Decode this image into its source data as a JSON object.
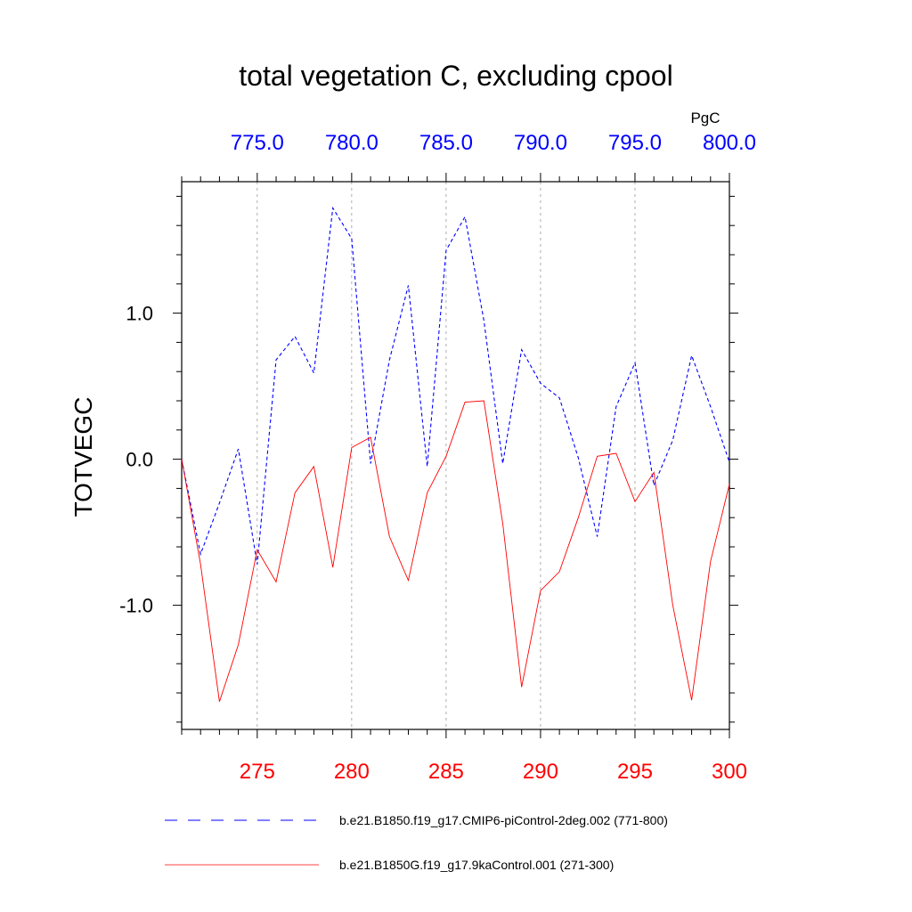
{
  "chart_data": {
    "type": "line",
    "title": "total vegetation C, excluding cpool",
    "ylabel": "TOTVEGC",
    "units": "PgC",
    "ylim": [
      -1.85,
      1.9
    ],
    "yticks": [
      {
        "value": -1.0,
        "label": "-1.0"
      },
      {
        "value": 0.0,
        "label": "0.0"
      },
      {
        "value": 1.0,
        "label": "1.0"
      }
    ],
    "y_minor_step": 0.2,
    "x_bottom": {
      "range": [
        271,
        300
      ],
      "ticks": [
        {
          "value": 275,
          "label": "275"
        },
        {
          "value": 280,
          "label": "280"
        },
        {
          "value": 285,
          "label": "285"
        },
        {
          "value": 290,
          "label": "290"
        },
        {
          "value": 295,
          "label": "295"
        },
        {
          "value": 300,
          "label": "300"
        }
      ],
      "color": "#ff0000"
    },
    "x_top": {
      "range": [
        771,
        800
      ],
      "ticks": [
        {
          "value": 775,
          "label": "775.0"
        },
        {
          "value": 780,
          "label": "780.0"
        },
        {
          "value": 785,
          "label": "785.0"
        },
        {
          "value": 790,
          "label": "790.0"
        },
        {
          "value": 795,
          "label": "795.0"
        },
        {
          "value": 800,
          "label": "800.0"
        }
      ],
      "color": "#0000ff"
    },
    "grid": "vertical dashed at major ticks",
    "series": [
      {
        "name": "b.e21.B1850.f19_g17.CMIP6-piControl-2deg.002 (771-800)",
        "axis": "top",
        "color": "#0000ff",
        "dash": true,
        "x": [
          771,
          772,
          773,
          774,
          775,
          776,
          777,
          778,
          779,
          780,
          781,
          782,
          783,
          784,
          785,
          786,
          787,
          788,
          789,
          790,
          791,
          792,
          793,
          794,
          795,
          796,
          797,
          798,
          799,
          800
        ],
        "values": [
          0.0,
          -0.65,
          -0.3,
          0.07,
          -0.72,
          0.68,
          0.84,
          0.59,
          1.72,
          1.51,
          -0.03,
          0.68,
          1.19,
          -0.05,
          1.43,
          1.66,
          0.95,
          -0.03,
          0.75,
          0.52,
          0.42,
          0.01,
          -0.53,
          0.36,
          0.66,
          -0.18,
          0.13,
          0.71,
          0.36,
          -0.02
        ]
      },
      {
        "name": "b.e21.B1850G.f19_g17.9kaControl.001 (271-300)",
        "axis": "bottom",
        "color": "#ff0000",
        "dash": false,
        "x": [
          271,
          272,
          273,
          274,
          275,
          276,
          277,
          278,
          279,
          280,
          281,
          282,
          283,
          284,
          285,
          286,
          287,
          288,
          289,
          290,
          291,
          292,
          293,
          294,
          295,
          296,
          297,
          298,
          299,
          300
        ],
        "values": [
          0.0,
          -0.72,
          -1.66,
          -1.27,
          -0.62,
          -0.84,
          -0.23,
          -0.05,
          -0.74,
          0.08,
          0.15,
          -0.53,
          -0.83,
          -0.23,
          0.02,
          0.39,
          0.4,
          -0.44,
          -1.56,
          -0.9,
          -0.77,
          -0.4,
          0.02,
          0.04,
          -0.29,
          -0.09,
          -1.0,
          -1.65,
          -0.7,
          -0.17
        ]
      }
    ]
  }
}
